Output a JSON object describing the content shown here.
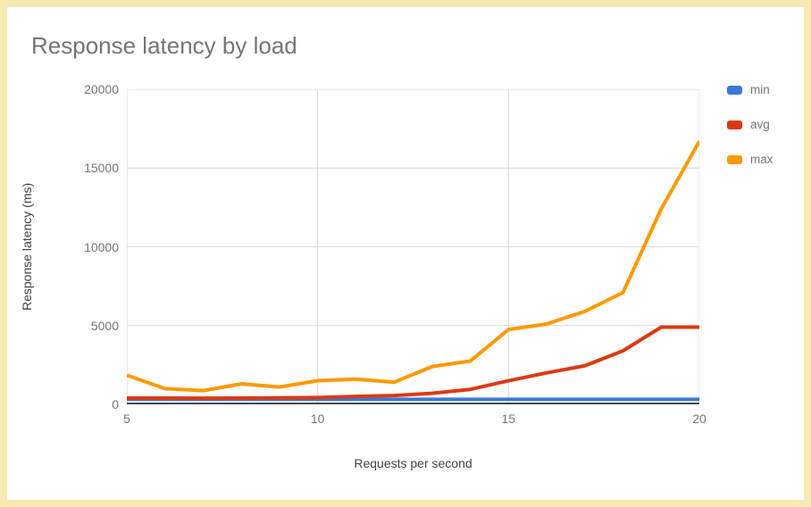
{
  "frame": {
    "border_color": "#F8E9B0",
    "background": "#FFFFFF"
  },
  "chart_data": {
    "type": "line",
    "title": "Response latency by load",
    "xlabel": "Requests per second",
    "ylabel": "Response latency (ms)",
    "x": [
      5,
      6,
      7,
      8,
      9,
      10,
      11,
      12,
      13,
      14,
      15,
      16,
      17,
      18,
      19,
      20
    ],
    "series": [
      {
        "name": "min",
        "color": "#3C78D8",
        "values": [
          320,
          320,
          320,
          320,
          320,
          320,
          320,
          320,
          320,
          320,
          320,
          320,
          320,
          320,
          320,
          320
        ]
      },
      {
        "name": "avg",
        "color": "#DC3912",
        "values": [
          400,
          400,
          390,
          400,
          410,
          430,
          500,
          560,
          700,
          950,
          1500,
          2000,
          2450,
          3400,
          4900,
          4900
        ]
      },
      {
        "name": "max",
        "color": "#FF9900",
        "values": [
          1850,
          1000,
          870,
          1300,
          1100,
          1500,
          1600,
          1400,
          2400,
          2750,
          4750,
          5100,
          5900,
          7100,
          12400,
          16700
        ]
      }
    ],
    "xlim": [
      5,
      20
    ],
    "ylim": [
      0,
      20000
    ],
    "x_ticks": [
      5,
      10,
      15,
      20
    ],
    "y_ticks": [
      0,
      5000,
      10000,
      15000,
      20000
    ],
    "grid": true,
    "legend_position": "right",
    "styles": {
      "gridline_color": "#D9D9D9",
      "axis_line_color": "#474747",
      "tick_label_color": "#757575",
      "axis_title_color": "#424242",
      "title_color": "#757575",
      "line_width": 4
    }
  }
}
